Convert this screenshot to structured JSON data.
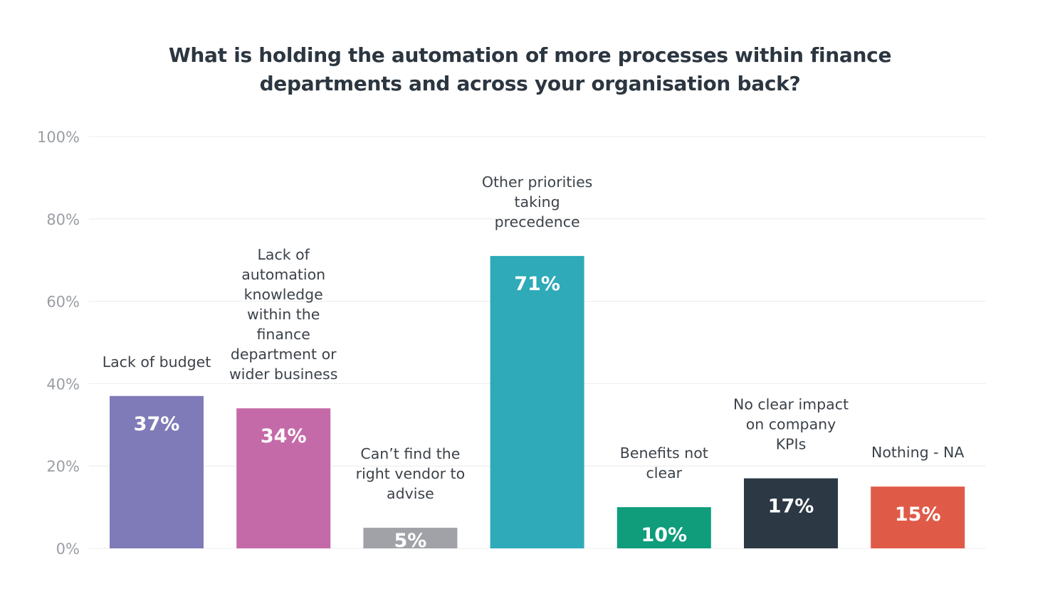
{
  "chart_data": {
    "type": "bar",
    "title": "What is holding the automation of more processes within finance departments and across your organisation back?",
    "title_lines": [
      "What is holding the automation of more processes within finance",
      "departments and across your organisation back?"
    ],
    "xlabel": "",
    "ylabel": "",
    "ylim": [
      0,
      100
    ],
    "y_ticks": [
      0,
      20,
      40,
      60,
      80,
      100
    ],
    "y_tick_labels": [
      "0%",
      "20%",
      "40%",
      "60%",
      "80%",
      "100%"
    ],
    "grid": true,
    "legend": "none",
    "categories": [
      "Lack of budget",
      "Lack of automation knowledge within the finance department or wider business",
      "Can’t find the right vendor to advise",
      "Other priorities taking precedence",
      "Benefits not clear",
      "No clear impact on company KPIs",
      "Nothing - NA"
    ],
    "category_label_lines": [
      [
        "Lack of budget"
      ],
      [
        "Lack of",
        "automation",
        "knowledge",
        "within the",
        "finance",
        "department or",
        "wider business"
      ],
      [
        "Can’t find the",
        "right vendor to",
        "advise"
      ],
      [
        "Other priorities",
        "taking",
        "precedence"
      ],
      [
        "Benefits not",
        "clear"
      ],
      [
        "No clear impact",
        "on company",
        "KPIs"
      ],
      [
        "Nothing - NA"
      ]
    ],
    "values": [
      37,
      34,
      5,
      71,
      10,
      17,
      15
    ],
    "value_labels": [
      "37%",
      "34%",
      "5%",
      "71%",
      "10%",
      "17%",
      "15%"
    ],
    "colors": [
      "#7f7bb8",
      "#c56aa8",
      "#a0a2a8",
      "#2eaab9",
      "#0f9d7c",
      "#2c3944",
      "#e05a48"
    ]
  }
}
